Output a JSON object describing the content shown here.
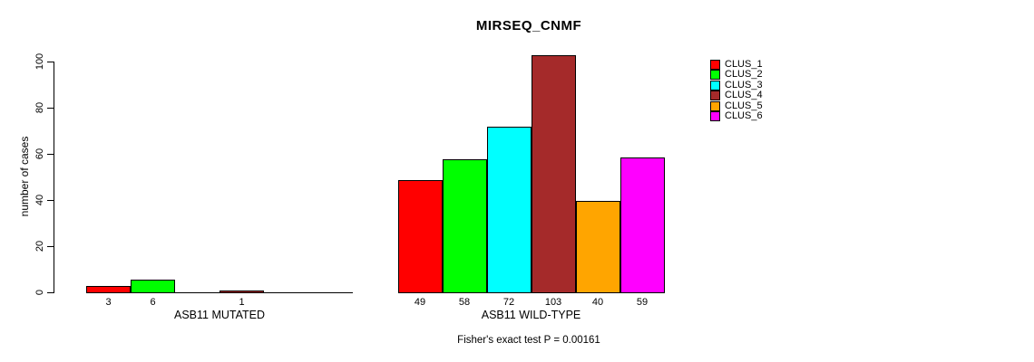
{
  "title": "MIRSEQ_CNMF",
  "y_axis": {
    "label": "number of cases",
    "ticks": [
      0,
      20,
      40,
      60,
      80,
      100
    ]
  },
  "footer": "Fisher's exact test P = 0.00161",
  "legend": {
    "items": [
      {
        "label": "CLUS_1",
        "color": "#FF0000"
      },
      {
        "label": "CLUS_2",
        "color": "#00FF00"
      },
      {
        "label": "CLUS_3",
        "color": "#00FFFF"
      },
      {
        "label": "CLUS_4",
        "color": "#A52A2A"
      },
      {
        "label": "CLUS_5",
        "color": "#FFA500"
      },
      {
        "label": "CLUS_6",
        "color": "#FF00FF"
      }
    ]
  },
  "chart_data": {
    "type": "bar",
    "title": "MIRSEQ_CNMF",
    "ylabel": "number of cases",
    "ylim": [
      0,
      100
    ],
    "yticks": [
      0,
      20,
      40,
      60,
      80,
      100
    ],
    "grid": false,
    "legend_position": "right",
    "series_names": [
      "CLUS_1",
      "CLUS_2",
      "CLUS_3",
      "CLUS_4",
      "CLUS_5",
      "CLUS_6"
    ],
    "colors": [
      "#FF0000",
      "#00FF00",
      "#00FFFF",
      "#A52A2A",
      "#FFA500",
      "#FF00FF"
    ],
    "groups": [
      {
        "label": "ASB11 MUTATED",
        "values": [
          3,
          6,
          0,
          1,
          0,
          0
        ],
        "bar_labels": [
          "3",
          "6",
          "",
          "1",
          "",
          ""
        ]
      },
      {
        "label": "ASB11 WILD-TYPE",
        "values": [
          49,
          58,
          72,
          103,
          40,
          59
        ],
        "bar_labels": [
          "49",
          "58",
          "72",
          "103",
          "40",
          "59"
        ]
      }
    ],
    "annotation": "Fisher's exact test P = 0.00161"
  }
}
